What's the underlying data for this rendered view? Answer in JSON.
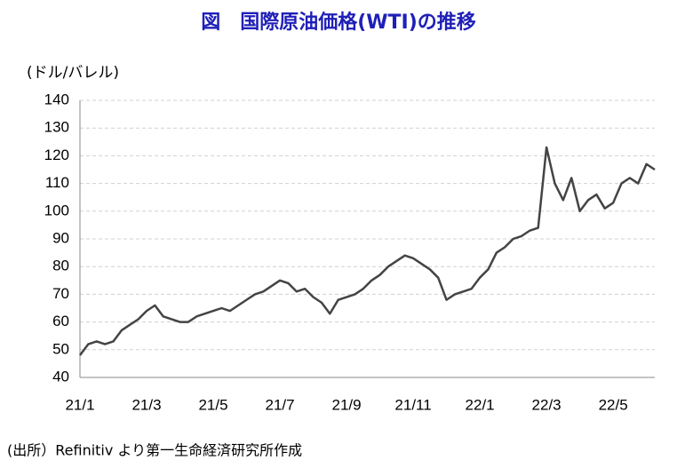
{
  "chart_data": {
    "type": "line",
    "title": "図　国際原油価格(WTI)の推移",
    "y_label": "(ドル/バレル)",
    "source": "(出所）Refinitiv より第一生命経済研究所作成",
    "categories": [
      "21/1",
      null,
      null,
      null,
      null,
      null,
      null,
      null,
      "21/3",
      null,
      null,
      null,
      null,
      null,
      null,
      null,
      "21/5",
      null,
      null,
      null,
      null,
      null,
      null,
      null,
      "21/7",
      null,
      null,
      null,
      null,
      null,
      null,
      null,
      "21/9",
      null,
      null,
      null,
      null,
      null,
      null,
      null,
      "21/11",
      null,
      null,
      null,
      null,
      null,
      null,
      null,
      "22/1",
      null,
      null,
      null,
      null,
      null,
      null,
      null,
      "22/3",
      null,
      null,
      null,
      null,
      null,
      null,
      null,
      "22/5",
      null,
      null,
      null,
      null,
      null
    ],
    "values": [
      48,
      52,
      53,
      52,
      53,
      57,
      59,
      61,
      64,
      66,
      62,
      61,
      60,
      60,
      62,
      63,
      64,
      65,
      64,
      66,
      68,
      70,
      71,
      73,
      75,
      74,
      71,
      72,
      69,
      67,
      63,
      68,
      69,
      70,
      72,
      75,
      77,
      80,
      82,
      84,
      83,
      81,
      79,
      76,
      68,
      70,
      71,
      72,
      76,
      79,
      85,
      87,
      90,
      91,
      93,
      94,
      123,
      110,
      104,
      112,
      100,
      104,
      106,
      101,
      103,
      110,
      112,
      110,
      117,
      115
    ],
    "color": "#444444",
    "ylim": [
      40,
      140
    ],
    "yticks": [
      40,
      50,
      60,
      70,
      80,
      90,
      100,
      110,
      120,
      130,
      140
    ],
    "grid": true
  }
}
